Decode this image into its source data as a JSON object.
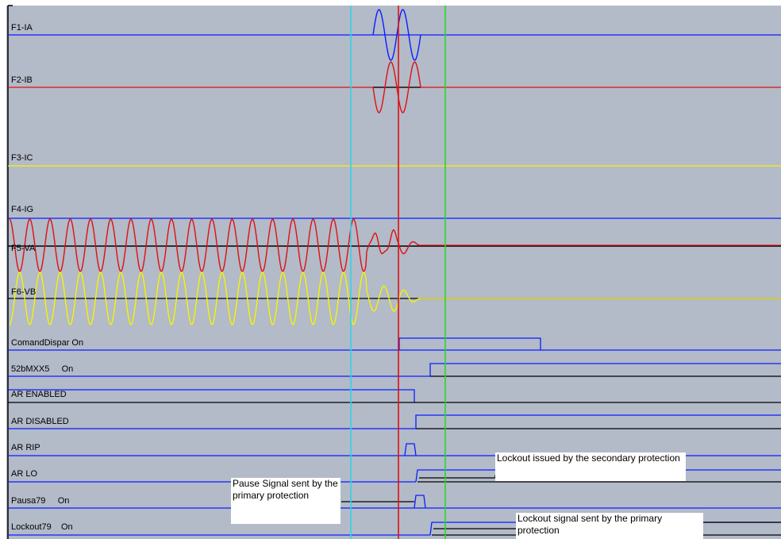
{
  "colors": {
    "background": "#b3bac8",
    "blue": "#0a1eff",
    "red": "#e01010",
    "yellow": "#f5f500",
    "cyan": "#35d2e6",
    "green": "#22dd22",
    "black": "#000000"
  },
  "analog_channels": [
    {
      "label": "F1-IA",
      "color": "blue"
    },
    {
      "label": "F2-IB",
      "color": "red"
    },
    {
      "label": "F3-IC",
      "color": "yellow"
    },
    {
      "label": "F4-IG",
      "color": "blue"
    },
    {
      "label": "F5-VA",
      "color": "red"
    },
    {
      "label": "F6-VB",
      "color": "yellow"
    }
  ],
  "digital_channels": [
    {
      "label": "ComandDispar On"
    },
    {
      "label": "52bMXX5     On"
    },
    {
      "label": "AR ENABLED"
    },
    {
      "label": "AR DISABLED"
    },
    {
      "label": "AR RIP"
    },
    {
      "label": "AR LO"
    },
    {
      "label": "Pausa79     On"
    },
    {
      "label": "Lockout79    On"
    }
  ],
  "annotations": {
    "lockout_secondary": "Lockout issued by the secondary protection",
    "pause_signal": "Pause Signal sent by the primary protection",
    "lockout_primary": "Lockout signal sent by the primary protection"
  },
  "cursors": [
    {
      "name": "cursor-cyan",
      "color": "cyan"
    },
    {
      "name": "cursor-red",
      "color": "red"
    },
    {
      "name": "cursor-green",
      "color": "green"
    }
  ]
}
